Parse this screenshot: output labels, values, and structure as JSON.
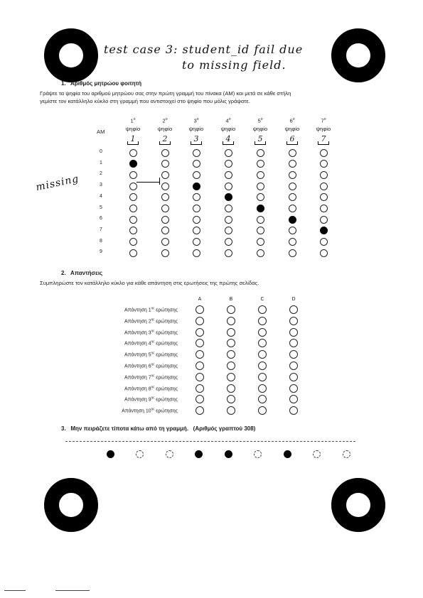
{
  "handwritten": {
    "title_line1": "test case 3: student_id fail due",
    "title_line2": "to missing field.",
    "missing_note": "missing"
  },
  "section1": {
    "number": "1.",
    "title": "Αριθμός μητρώου φοιτητή",
    "instruction_line1": "Γράψτε τα ψηφία του αριθμού μητρώου σας στην πρώτη γραμμή του πίνακα (ΑΜ) και μετά σε κάθε στήλη",
    "instruction_line2": "γεμίστε τον κατάλληλο κύκλο στη γραμμή που αντιστοιχεί στο ψηφίο που μόλις γράψατε.",
    "am_label": "ΑΜ",
    "columns": [
      {
        "ordinal": "1",
        "sup": "ο",
        "word": "ψηφίο",
        "written": "1",
        "filled_digit": 1
      },
      {
        "ordinal": "2",
        "sup": "ο",
        "word": "ψηφίο",
        "written": "2",
        "filled_digit": null
      },
      {
        "ordinal": "3",
        "sup": "ο",
        "word": "ψηφίο",
        "written": "3",
        "filled_digit": 3
      },
      {
        "ordinal": "4",
        "sup": "ο",
        "word": "ψηφίο",
        "written": "4",
        "filled_digit": 4
      },
      {
        "ordinal": "5",
        "sup": "ο",
        "word": "ψηφίο",
        "written": "5",
        "filled_digit": 5
      },
      {
        "ordinal": "6",
        "sup": "ο",
        "word": "ψηφίο",
        "written": "6",
        "filled_digit": 6
      },
      {
        "ordinal": "7",
        "sup": "ο",
        "word": "ψηφίο",
        "written": "7",
        "filled_digit": 7
      }
    ],
    "digits": [
      "0",
      "1",
      "2",
      "3",
      "4",
      "5",
      "6",
      "7",
      "8",
      "9"
    ]
  },
  "section2": {
    "number": "2.",
    "title": "Απαντήσεις",
    "instruction": "Συμπληρώστε τον κατάλληλο κύκλο για κάθε απάντηση στις ερωτήσεις της πρώτης σελίδας.",
    "options": [
      "A",
      "B",
      "C",
      "D"
    ],
    "questions": [
      {
        "prefix": "Απάντηση 1",
        "sup": "ης",
        "suffix": " ερώτησης"
      },
      {
        "prefix": "Απάντηση 2",
        "sup": "ης",
        "suffix": " ερώτησης"
      },
      {
        "prefix": "Απάντηση 3",
        "sup": "ης",
        "suffix": " ερώτησης"
      },
      {
        "prefix": "Απάντηση 4",
        "sup": "ης",
        "suffix": " ερώτησης"
      },
      {
        "prefix": "Απάντηση 5",
        "sup": "ης",
        "suffix": " ερώτησης"
      },
      {
        "prefix": "Απάντηση 6",
        "sup": "ης",
        "suffix": " ερώτησης"
      },
      {
        "prefix": "Απάντηση 7",
        "sup": "ης",
        "suffix": " ερώτησης"
      },
      {
        "prefix": "Απάντηση 8",
        "sup": "ης",
        "suffix": " ερώτησης"
      },
      {
        "prefix": "Απάντηση 9",
        "sup": "ης",
        "suffix": " ερώτησης"
      },
      {
        "prefix": "Απάντηση 10",
        "sup": "ης",
        "suffix": " ερώτησης"
      }
    ]
  },
  "section3": {
    "number": "3.",
    "title": "Μην πειράζετε τίποτα κάτω από τη γραμμή.",
    "page_number_label": "(Αριθμός γραπτού 308)",
    "code_dots": [
      true,
      false,
      false,
      true,
      true,
      false,
      true,
      false,
      false
    ]
  }
}
